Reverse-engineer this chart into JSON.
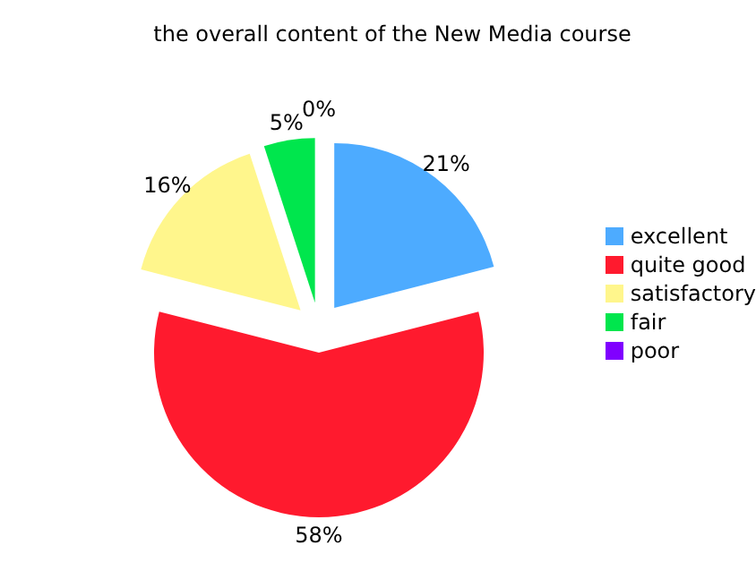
{
  "chart_data": {
    "type": "pie",
    "title": "the overall content of the New Media course",
    "categories": [
      "excellent",
      "quite good",
      "satisfactory",
      "fair",
      "poor"
    ],
    "values": [
      21,
      58,
      16,
      5,
      0
    ],
    "value_labels": [
      "21%",
      "58%",
      "16%",
      "5%",
      "0%"
    ],
    "colors": [
      "#4dabff",
      "#ff1a2e",
      "#fff68c",
      "#00e64d",
      "#8000ff"
    ],
    "legend": "right"
  }
}
